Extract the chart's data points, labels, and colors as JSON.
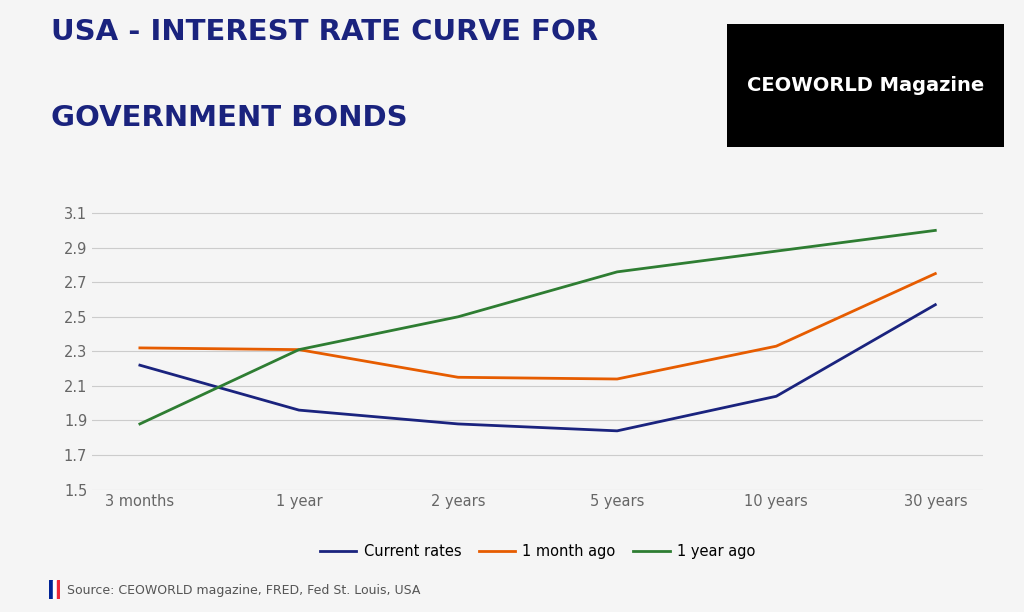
{
  "title_line1": "USA - INTEREST RATE CURVE FOR",
  "title_line2": "GOVERNMENT BONDS",
  "title_color": "#1a237e",
  "title_fontsize": 21,
  "background_color": "#f5f5f5",
  "x_labels": [
    "3 months",
    "1 year",
    "2 years",
    "5 years",
    "10 years",
    "30 years"
  ],
  "x_positions": [
    0,
    1,
    2,
    3,
    4,
    5
  ],
  "current_rates": [
    2.22,
    1.96,
    1.88,
    1.84,
    2.04,
    2.57
  ],
  "one_month_ago": [
    2.32,
    2.31,
    2.15,
    2.14,
    2.33,
    2.75
  ],
  "one_year_ago": [
    1.88,
    2.31,
    2.5,
    2.76,
    2.88,
    3.0
  ],
  "current_color": "#1a237e",
  "month_color": "#e65c00",
  "year_color": "#2e7d32",
  "ylim": [
    1.5,
    3.2
  ],
  "yticks": [
    1.5,
    1.7,
    1.9,
    2.1,
    2.3,
    2.5,
    2.7,
    2.9,
    3.1
  ],
  "source_text": "Source: CEOWORLD magazine, FRED, Fed St. Louis, USA",
  "legend_labels": [
    "Current rates",
    "1 month ago",
    "1 year ago"
  ],
  "logo_bg": "#000000",
  "logo_text1": "CEOWORLD",
  "logo_text2": "Magazine"
}
